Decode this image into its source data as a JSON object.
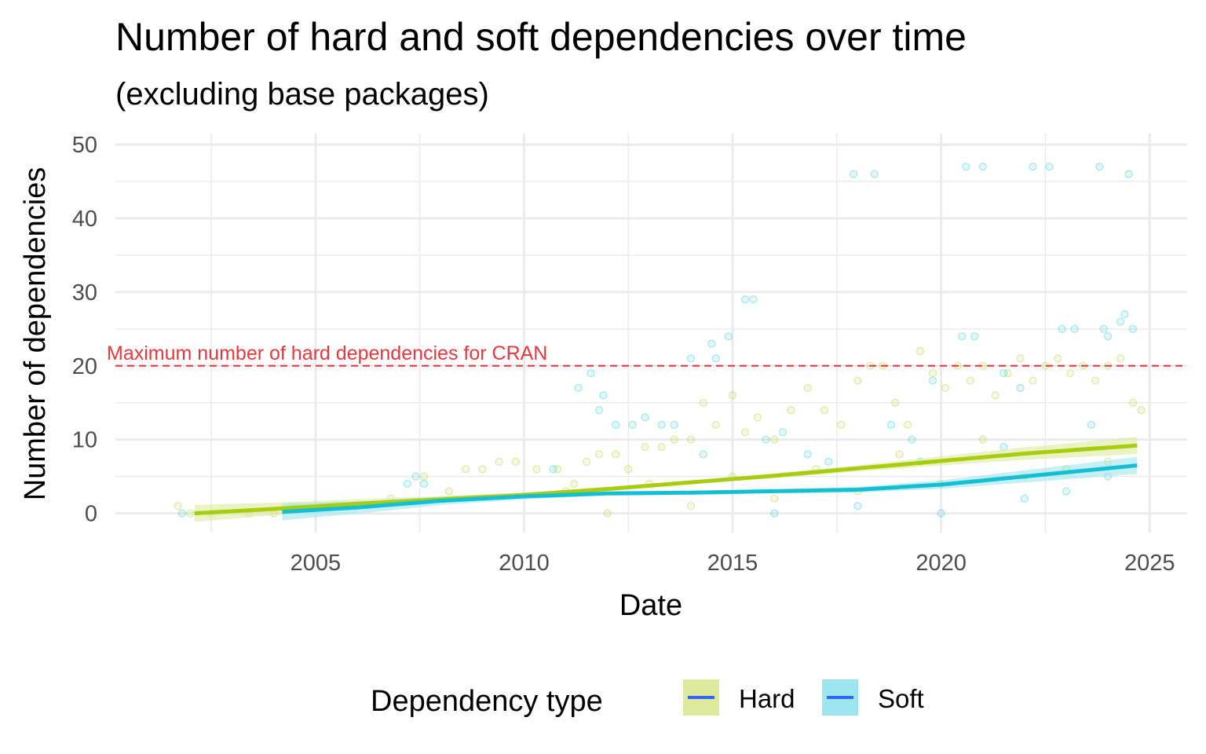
{
  "chart_data": {
    "type": "scatter",
    "title": "Number of hard and soft dependencies over time",
    "subtitle": "(excluding base packages)",
    "xlabel": "Date",
    "ylabel": "Number of dependencies",
    "x_ticks": [
      "2005",
      "2010",
      "2015",
      "2020",
      "2025"
    ],
    "y_ticks": [
      "0",
      "10",
      "20",
      "30",
      "40",
      "50"
    ],
    "xlim": [
      2000.2,
      2025.9
    ],
    "ylim": [
      -2.6,
      51.5
    ],
    "grid": true,
    "reference_line": {
      "y": 20,
      "label": "Maximum number of hard dependencies for CRAN",
      "color": "#e8383d",
      "style": "dashed"
    },
    "legend": {
      "title": "Dependency type",
      "position": "bottom",
      "items": [
        "Hard",
        "Soft"
      ]
    },
    "series": [
      {
        "name": "Hard",
        "color": "#a8cc0e",
        "band_color": "#dde99c",
        "trend": {
          "x": [
            2002.1,
            2004.0,
            2006.0,
            2008.0,
            2010.0,
            2012.0,
            2014.0,
            2016.0,
            2018.0,
            2020.0,
            2022.0,
            2024.7
          ],
          "y": [
            0.0,
            0.6,
            1.3,
            1.9,
            2.5,
            3.3,
            4.2,
            5.1,
            6.1,
            7.1,
            8.1,
            9.2
          ]
        },
        "points": [
          [
            2001.7,
            1
          ],
          [
            2002.0,
            0
          ],
          [
            2002.5,
            0
          ],
          [
            2003.4,
            0
          ],
          [
            2004.0,
            0
          ],
          [
            2006.0,
            1
          ],
          [
            2006.8,
            2
          ],
          [
            2007.6,
            5
          ],
          [
            2008.2,
            3
          ],
          [
            2008.6,
            6
          ],
          [
            2009.0,
            6
          ],
          [
            2009.4,
            7
          ],
          [
            2009.8,
            7
          ],
          [
            2010.3,
            6
          ],
          [
            2010.8,
            6
          ],
          [
            2011.2,
            4
          ],
          [
            2011.5,
            7
          ],
          [
            2011.8,
            8
          ],
          [
            2012.2,
            8
          ],
          [
            2012.5,
            6
          ],
          [
            2012.9,
            9
          ],
          [
            2013.3,
            9
          ],
          [
            2013.6,
            10
          ],
          [
            2014.0,
            10
          ],
          [
            2014.3,
            15
          ],
          [
            2014.6,
            12
          ],
          [
            2015.0,
            16
          ],
          [
            2015.3,
            11
          ],
          [
            2015.6,
            13
          ],
          [
            2016.0,
            10
          ],
          [
            2016.4,
            14
          ],
          [
            2016.8,
            17
          ],
          [
            2017.2,
            14
          ],
          [
            2017.6,
            12
          ],
          [
            2018.0,
            18
          ],
          [
            2018.3,
            20
          ],
          [
            2018.6,
            20
          ],
          [
            2018.9,
            15
          ],
          [
            2019.2,
            12
          ],
          [
            2019.5,
            22
          ],
          [
            2019.8,
            19
          ],
          [
            2020.1,
            17
          ],
          [
            2020.4,
            20
          ],
          [
            2020.7,
            18
          ],
          [
            2021.0,
            20
          ],
          [
            2021.3,
            16
          ],
          [
            2021.6,
            19
          ],
          [
            2021.9,
            21
          ],
          [
            2022.2,
            18
          ],
          [
            2022.5,
            20
          ],
          [
            2022.8,
            21
          ],
          [
            2023.1,
            19
          ],
          [
            2023.4,
            20
          ],
          [
            2023.7,
            18
          ],
          [
            2024.0,
            20
          ],
          [
            2024.3,
            21
          ],
          [
            2024.6,
            15
          ],
          [
            2024.8,
            14
          ],
          [
            2012.0,
            0
          ],
          [
            2014.0,
            1
          ],
          [
            2016.0,
            2
          ],
          [
            2018.0,
            3
          ],
          [
            2020.0,
            4
          ],
          [
            2022.0,
            5
          ],
          [
            2023.0,
            6
          ],
          [
            2024.0,
            7
          ],
          [
            2019.0,
            8
          ],
          [
            2021.0,
            10
          ],
          [
            2017.0,
            6
          ],
          [
            2015.0,
            5
          ],
          [
            2013.0,
            4
          ],
          [
            2011.0,
            3
          ]
        ]
      },
      {
        "name": "Soft",
        "color": "#14bfd4",
        "band_color": "#9ee6ef",
        "trend": {
          "x": [
            2004.2,
            2006.0,
            2008.0,
            2010.0,
            2012.0,
            2014.0,
            2016.0,
            2018.0,
            2020.0,
            2022.0,
            2024.7
          ],
          "y": [
            0.2,
            0.8,
            1.7,
            2.3,
            2.7,
            2.8,
            3.0,
            3.2,
            3.9,
            5.0,
            6.5
          ]
        },
        "points": [
          [
            2001.8,
            0
          ],
          [
            2007.2,
            4
          ],
          [
            2007.4,
            5
          ],
          [
            2007.6,
            4
          ],
          [
            2010.7,
            6
          ],
          [
            2011.3,
            17
          ],
          [
            2011.6,
            19
          ],
          [
            2011.8,
            14
          ],
          [
            2011.9,
            16
          ],
          [
            2012.2,
            12
          ],
          [
            2012.6,
            12
          ],
          [
            2012.9,
            13
          ],
          [
            2013.3,
            12
          ],
          [
            2013.6,
            12
          ],
          [
            2014.0,
            21
          ],
          [
            2014.3,
            8
          ],
          [
            2014.5,
            23
          ],
          [
            2014.6,
            21
          ],
          [
            2014.9,
            24
          ],
          [
            2015.3,
            29
          ],
          [
            2015.5,
            29
          ],
          [
            2015.8,
            10
          ],
          [
            2016.2,
            11
          ],
          [
            2016.8,
            8
          ],
          [
            2017.3,
            7
          ],
          [
            2017.9,
            46
          ],
          [
            2018.4,
            46
          ],
          [
            2018.8,
            12
          ],
          [
            2019.3,
            10
          ],
          [
            2019.8,
            18
          ],
          [
            2020.5,
            24
          ],
          [
            2020.6,
            47
          ],
          [
            2020.8,
            24
          ],
          [
            2021.0,
            47
          ],
          [
            2021.5,
            19
          ],
          [
            2021.9,
            17
          ],
          [
            2022.2,
            47
          ],
          [
            2022.6,
            47
          ],
          [
            2022.9,
            25
          ],
          [
            2023.2,
            25
          ],
          [
            2023.6,
            12
          ],
          [
            2023.8,
            47
          ],
          [
            2023.9,
            25
          ],
          [
            2024.0,
            24
          ],
          [
            2024.3,
            26
          ],
          [
            2024.4,
            27
          ],
          [
            2024.5,
            46
          ],
          [
            2024.6,
            25
          ],
          [
            2016.0,
            0
          ],
          [
            2018.0,
            1
          ],
          [
            2020.0,
            0
          ],
          [
            2022.0,
            2
          ],
          [
            2023.0,
            3
          ],
          [
            2024.0,
            5
          ],
          [
            2021.5,
            9
          ],
          [
            2019.5,
            7
          ]
        ]
      }
    ]
  }
}
